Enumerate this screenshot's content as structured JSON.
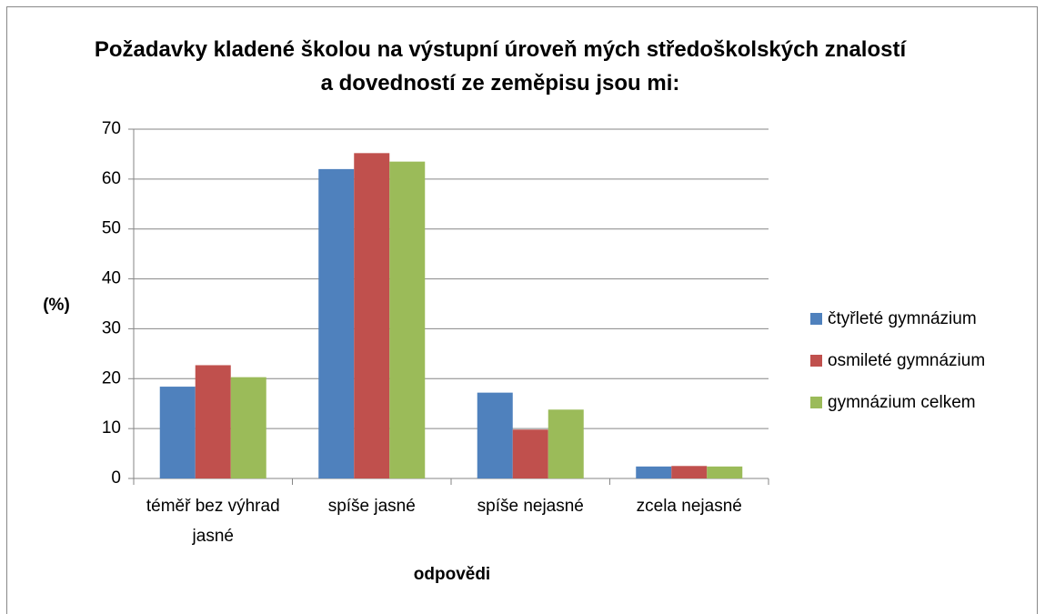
{
  "chart_data": {
    "type": "bar",
    "title": "Požadavky kladené školou na výstupní úroveň mých středoškolských znalostí a dovedností ze zeměpisu jsou mi:",
    "xlabel": "odpovědi",
    "ylabel": "(%)",
    "categories": [
      "téměř bez výhrad jasné",
      "spíše jasné",
      "spíše nejasné",
      "zcela nejasné"
    ],
    "series": [
      {
        "name": "čtyřleté gymnázium",
        "color": "#4f81bd",
        "values": [
          18.4,
          62,
          17.2,
          2.4
        ]
      },
      {
        "name": "osmileté gymnázium",
        "color": "#c0504d",
        "values": [
          22.7,
          65.2,
          9.8,
          2.5
        ]
      },
      {
        "name": "gymnázium celkem",
        "color": "#9bbb59",
        "values": [
          20.3,
          63.5,
          13.8,
          2.4
        ]
      }
    ],
    "ylim": [
      0,
      70
    ],
    "yticks": [
      0,
      10,
      20,
      30,
      40,
      50,
      60,
      70
    ],
    "grid": true,
    "legend": "right"
  }
}
